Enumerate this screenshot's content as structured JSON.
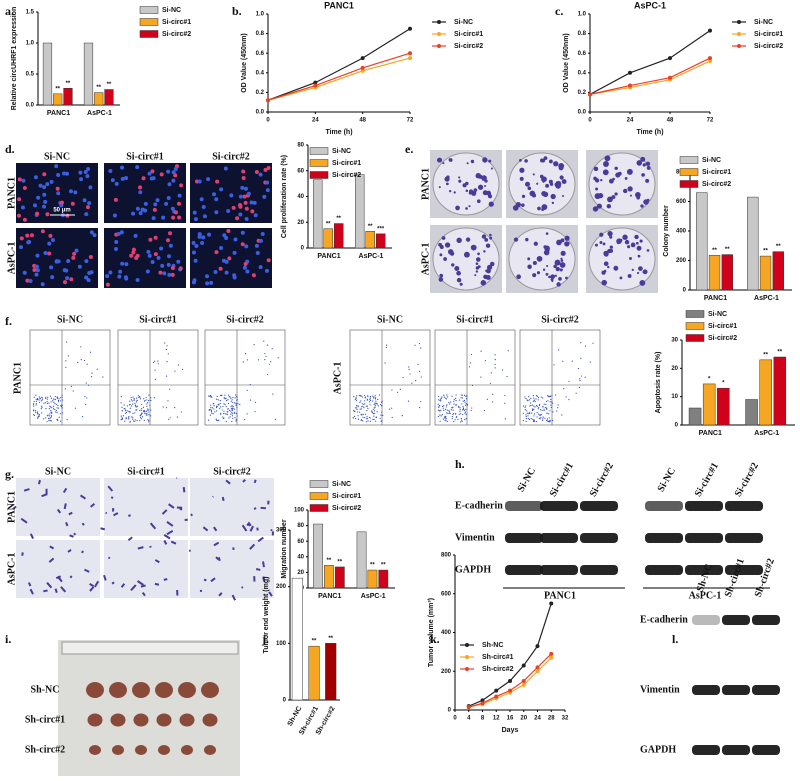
{
  "panel_labels": [
    "a.",
    "b.",
    "c.",
    "d.",
    "e.",
    "f.",
    "g.",
    "h.",
    "i.",
    "j.",
    "k.",
    "l."
  ],
  "panels": {
    "d": {
      "columns": [
        "Si-NC",
        "Si-circ#1",
        "Si-circ#2"
      ],
      "rows": [
        "PANC1",
        "AsPC-1"
      ],
      "scale_bar": "50 μm"
    },
    "e": {
      "columns": [
        "Si-NC",
        "Si-circ#1",
        "Si-circ#2"
      ],
      "rows": [
        "PANC1",
        "AsPC-1"
      ]
    },
    "f": {
      "groups": [
        {
          "name": "PANC1",
          "columns": [
            "Si-NC",
            "Si-circ#1",
            "Si-circ#2"
          ]
        },
        {
          "name": "AsPC-1",
          "columns": [
            "Si-NC",
            "Si-circ#1",
            "Si-circ#2"
          ]
        }
      ]
    },
    "g": {
      "columns": [
        "Si-NC",
        "Si-circ#1",
        "Si-circ#2"
      ],
      "rows": [
        "PANC1",
        "AsPC-1"
      ]
    },
    "h": {
      "lanes": [
        "Si-NC",
        "Si-circ#1",
        "Si-circ#2"
      ],
      "bands": [
        "E-cadherin",
        "Vimentin",
        "GAPDH"
      ],
      "groups": [
        "PANC1",
        "AsPC-1"
      ]
    },
    "i": {
      "rows": [
        "Sh-NC",
        "Sh-circ#1",
        "Sh-circ#2"
      ]
    },
    "l": {
      "lanes": [
        "Sh-NC",
        "Sh-circ#1",
        "Sh-circ#2"
      ],
      "bands": [
        "E-cadherin",
        "Vimentin",
        "GAPDH"
      ]
    }
  },
  "chart_data": [
    {
      "type": "bar",
      "y_label": "Relative circUHRF1 expression",
      "categories": [
        "PANC1",
        "AsPC-1"
      ],
      "series": [
        {
          "name": "Si-NC",
          "color": "#c8c8c8",
          "values": [
            1.0,
            1.0
          ]
        },
        {
          "name": "Si-circ#1",
          "color": "#f5a623",
          "values": [
            0.18,
            0.2
          ],
          "marks": [
            "**",
            "**"
          ]
        },
        {
          "name": "Si-circ#2",
          "color": "#d0021b",
          "values": [
            0.27,
            0.25
          ],
          "marks": [
            "**",
            "**"
          ]
        }
      ],
      "ylim": [
        0,
        1.5
      ],
      "yticks": [
        {
          "value": 0,
          "label": "0.0"
        },
        {
          "value": 0.5,
          "label": "0.5"
        },
        {
          "value": 1,
          "label": "1.0"
        },
        {
          "value": 1.5,
          "label": "1.5"
        }
      ],
      "legend": true
    },
    {
      "type": "line",
      "title": "PANC1",
      "x_label": "Time (h)",
      "y_label": "OD Value (450nm)",
      "x": [
        0,
        24,
        48,
        72
      ],
      "series": [
        {
          "name": "Si-NC",
          "color": "#222222",
          "values": [
            0.12,
            0.3,
            0.55,
            0.85
          ]
        },
        {
          "name": "Si-circ#1",
          "color": "#f5a623",
          "values": [
            0.12,
            0.25,
            0.42,
            0.55
          ]
        },
        {
          "name": "Si-circ#2",
          "color": "#e8402a",
          "values": [
            0.12,
            0.27,
            0.45,
            0.6
          ]
        }
      ],
      "xlim": [
        0,
        72
      ],
      "xticks": [
        0,
        24,
        48,
        72
      ],
      "ylim": [
        0,
        1
      ],
      "yticks": [
        {
          "value": 0,
          "label": "0.0"
        },
        {
          "value": 0.2,
          "label": "0.2"
        },
        {
          "value": 0.4,
          "label": "0.4"
        },
        {
          "value": 0.6,
          "label": "0.6"
        },
        {
          "value": 0.8,
          "label": "0.8"
        },
        {
          "value": 1,
          "label": "1.0"
        }
      ],
      "legend": true
    },
    {
      "type": "line",
      "title": "AsPC-1",
      "x_label": "Time (h)",
      "y_label": "OD Value (450nm)",
      "x": [
        0,
        24,
        48,
        72
      ],
      "series": [
        {
          "name": "Si-NC",
          "color": "#222222",
          "values": [
            0.18,
            0.4,
            0.55,
            0.83
          ]
        },
        {
          "name": "Si-circ#1",
          "color": "#f5a623",
          "values": [
            0.18,
            0.25,
            0.33,
            0.52
          ]
        },
        {
          "name": "Si-circ#2",
          "color": "#e8402a",
          "values": [
            0.18,
            0.27,
            0.35,
            0.55
          ]
        }
      ],
      "xlim": [
        0,
        72
      ],
      "xticks": [
        0,
        24,
        48,
        72
      ],
      "ylim": [
        0,
        1
      ],
      "yticks": [
        {
          "value": 0,
          "label": "0.0"
        },
        {
          "value": 0.2,
          "label": "0.2"
        },
        {
          "value": 0.4,
          "label": "0.4"
        },
        {
          "value": 0.6,
          "label": "0.6"
        },
        {
          "value": 0.8,
          "label": "0.8"
        },
        {
          "value": 1,
          "label": "1.0"
        }
      ],
      "legend": true
    },
    {
      "type": "bar",
      "y_label": "Cell proliferation rate (%)",
      "categories": [
        "PANC1",
        "AsPC-1"
      ],
      "series": [
        {
          "name": "Si-NC",
          "color": "#c8c8c8",
          "values": [
            53,
            57
          ]
        },
        {
          "name": "Si-circ#1",
          "color": "#f5a623",
          "values": [
            15,
            13
          ],
          "marks": [
            "**",
            "**"
          ]
        },
        {
          "name": "Si-circ#2",
          "color": "#d0021b",
          "values": [
            19,
            11
          ],
          "marks": [
            "**",
            "***"
          ]
        }
      ],
      "ylim": [
        0,
        80
      ],
      "yticks": [
        0,
        20,
        40,
        60,
        80
      ],
      "legend": true
    },
    {
      "type": "bar",
      "y_label": "Colony number",
      "categories": [
        "PANC1",
        "AsPC-1"
      ],
      "series": [
        {
          "name": "Si-NC",
          "color": "#c8c8c8",
          "values": [
            660,
            630
          ]
        },
        {
          "name": "Si-circ#1",
          "color": "#f5a623",
          "values": [
            235,
            230
          ],
          "marks": [
            "**",
            "**"
          ]
        },
        {
          "name": "Si-circ#2",
          "color": "#d0021b",
          "values": [
            240,
            260
          ],
          "marks": [
            "**",
            "**"
          ]
        }
      ],
      "ylim": [
        0,
        800
      ],
      "yticks": [
        0,
        200,
        400,
        600,
        800
      ],
      "legend": true
    },
    {
      "type": "bar",
      "y_label": "Apoptosis rate (%)",
      "categories": [
        "PANC1",
        "AsPC-1"
      ],
      "series": [
        {
          "name": "Si-NC",
          "color": "#808080",
          "values": [
            6,
            9
          ]
        },
        {
          "name": "Si-circ#1",
          "color": "#f5a623",
          "values": [
            14.5,
            23
          ],
          "marks": [
            "*",
            "**"
          ]
        },
        {
          "name": "Si-circ#2",
          "color": "#d0021b",
          "values": [
            13,
            24
          ],
          "marks": [
            "*",
            "**"
          ]
        }
      ],
      "ylim": [
        0,
        30
      ],
      "yticks": [
        0,
        10,
        20,
        30
      ],
      "legend": true
    },
    {
      "type": "bar",
      "y_label": "Migration number",
      "categories": [
        "PANC1",
        "AsPC-1"
      ],
      "series": [
        {
          "name": "Si-NC",
          "color": "#c8c8c8",
          "values": [
            82,
            72
          ]
        },
        {
          "name": "Si-circ#1",
          "color": "#f5a623",
          "values": [
            29,
            23
          ],
          "marks": [
            "**",
            "**"
          ]
        },
        {
          "name": "Si-circ#2",
          "color": "#d0021b",
          "values": [
            27,
            23
          ],
          "marks": [
            "**",
            "**"
          ]
        }
      ],
      "ylim": [
        0,
        100
      ],
      "yticks": [
        0,
        20,
        40,
        60,
        80,
        100
      ],
      "legend": true
    },
    {
      "type": "bar",
      "y_label": "Tumor end weight (mg)",
      "categories": [
        "Sh-NC",
        "Sh-circ#1",
        "Sh-circ#2"
      ],
      "series": [
        {
          "name": "Tumor end weight",
          "colors": [
            "#ffffff",
            "#f5a623",
            "#a00000"
          ],
          "values": [
            215,
            95,
            100
          ],
          "marks": [
            null,
            "**",
            "**"
          ]
        }
      ],
      "ylim": [
        0,
        300
      ],
      "yticks": [
        0,
        100,
        200,
        300
      ],
      "legend": false
    },
    {
      "type": "line",
      "x_label": "Days",
      "y_label": "Tumor volume (mm³)",
      "x": [
        4,
        8,
        12,
        16,
        20,
        24,
        28
      ],
      "series": [
        {
          "name": "Sh-NC",
          "color": "#222222",
          "values": [
            20,
            50,
            100,
            150,
            230,
            330,
            550
          ]
        },
        {
          "name": "Sh-circ#1",
          "color": "#f5a623",
          "values": [
            15,
            30,
            60,
            90,
            130,
            200,
            270
          ]
        },
        {
          "name": "Sh-circ#2",
          "color": "#e8402a",
          "values": [
            15,
            35,
            70,
            100,
            150,
            220,
            290
          ]
        }
      ],
      "xlim": [
        0,
        32
      ],
      "xticks": [
        0,
        4,
        8,
        12,
        16,
        20,
        24,
        28,
        32
      ],
      "ylim": [
        0,
        800
      ],
      "yticks": [
        0,
        200,
        400,
        600,
        800
      ],
      "legend": true
    }
  ]
}
